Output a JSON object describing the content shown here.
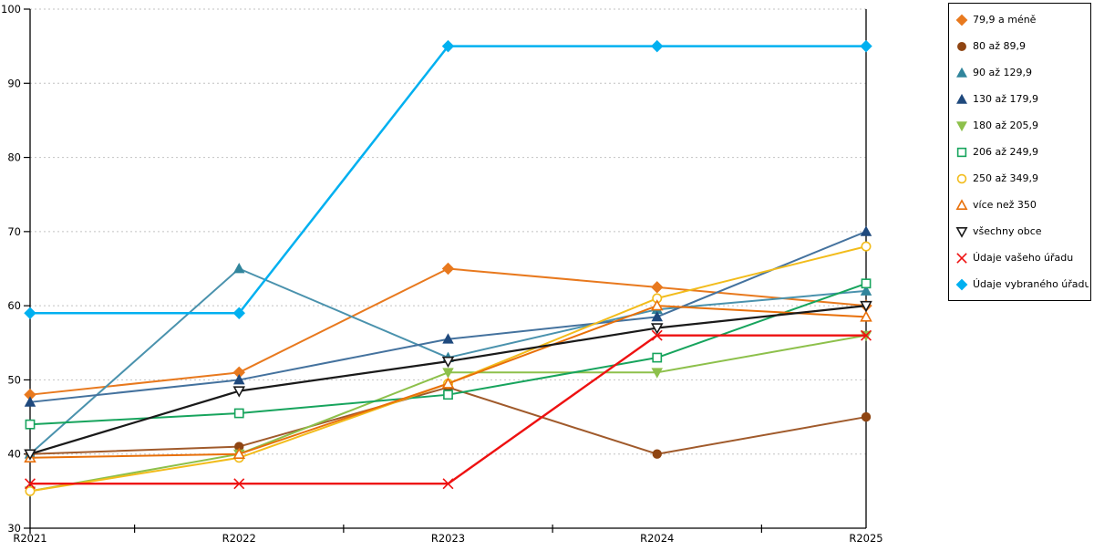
{
  "page": {
    "background": "#FFFFFF"
  },
  "chart_data": {
    "type": "line",
    "title": "",
    "xlabel": "",
    "ylabel": "",
    "categories": [
      "R2021",
      "R2022",
      "R2023",
      "R2024",
      "R2025"
    ],
    "ylim": [
      30,
      100
    ],
    "ytick_step": 10,
    "yticks": [
      30,
      40,
      50,
      60,
      70,
      80,
      90,
      100
    ],
    "grid": {
      "horizontal": true,
      "style": "dashed",
      "color": "#C2C2C2"
    },
    "axis_color": "#000000",
    "legend": {
      "position": "right",
      "border_color": "#000000",
      "background": "#FFFFFF"
    },
    "series": [
      {
        "name": "79,9 a méně",
        "marker": "diamond",
        "filled": true,
        "color": "#E8791E",
        "line_color": "#E8791E",
        "line_width": 2,
        "values": [
          48,
          51,
          65,
          62.5,
          60
        ]
      },
      {
        "name": "80 až 89,9",
        "marker": "circle",
        "filled": true,
        "color": "#8F4512",
        "line_color": "#A05A2B",
        "line_width": 2,
        "values": [
          40,
          41,
          49,
          40,
          45
        ]
      },
      {
        "name": "90 až 129,9",
        "marker": "triangle-up",
        "filled": true,
        "color": "#31859C",
        "line_color": "#4A92AD",
        "line_width": 2,
        "values": [
          40,
          65,
          53,
          59.5,
          62
        ]
      },
      {
        "name": "130 až 179,9",
        "marker": "triangle-up",
        "filled": true,
        "color": "#1F497D",
        "line_color": "#44729E",
        "line_width": 2,
        "values": [
          47,
          50,
          55.5,
          58.5,
          70
        ]
      },
      {
        "name": "180 až 205,9",
        "marker": "triangle-down",
        "filled": true,
        "color": "#8DC04B",
        "line_color": "#8DC04B",
        "line_width": 2,
        "values": [
          35,
          40,
          51,
          51,
          56
        ]
      },
      {
        "name": "206 až 249,9",
        "marker": "square",
        "filled": false,
        "color": "#17A45D",
        "line_color": "#17A45D",
        "line_width": 2,
        "values": [
          44,
          45.5,
          48,
          53,
          63
        ]
      },
      {
        "name": "250 až 349,9",
        "marker": "circle",
        "filled": false,
        "color": "#F2BC1B",
        "line_color": "#F2BC1B",
        "line_width": 2,
        "values": [
          35,
          39.5,
          49.5,
          61,
          68
        ]
      },
      {
        "name": "více než 350",
        "marker": "triangle-up",
        "filled": false,
        "color": "#E8700A",
        "line_color": "#E8700A",
        "line_width": 2,
        "values": [
          39.5,
          40,
          49.5,
          60,
          58.5
        ]
      },
      {
        "name": "všechny obce",
        "marker": "triangle-down",
        "filled": false,
        "color": "#1A1A1A",
        "line_color": "#1A1A1A",
        "line_width": 2.2,
        "values": [
          40,
          48.5,
          52.5,
          57,
          60
        ]
      },
      {
        "name": "Údaje vašeho úřadu",
        "marker": "x",
        "filled": false,
        "color": "#EE1111",
        "line_color": "#EE1111",
        "line_width": 2.4,
        "values": [
          36,
          36,
          36,
          56,
          56
        ]
      },
      {
        "name": "Údaje vybraného úřadu",
        "marker": "diamond",
        "filled": true,
        "color": "#00B0F0",
        "line_color": "#00B0F0",
        "line_width": 2.5,
        "values": [
          59,
          59,
          95,
          95,
          95
        ]
      }
    ]
  }
}
